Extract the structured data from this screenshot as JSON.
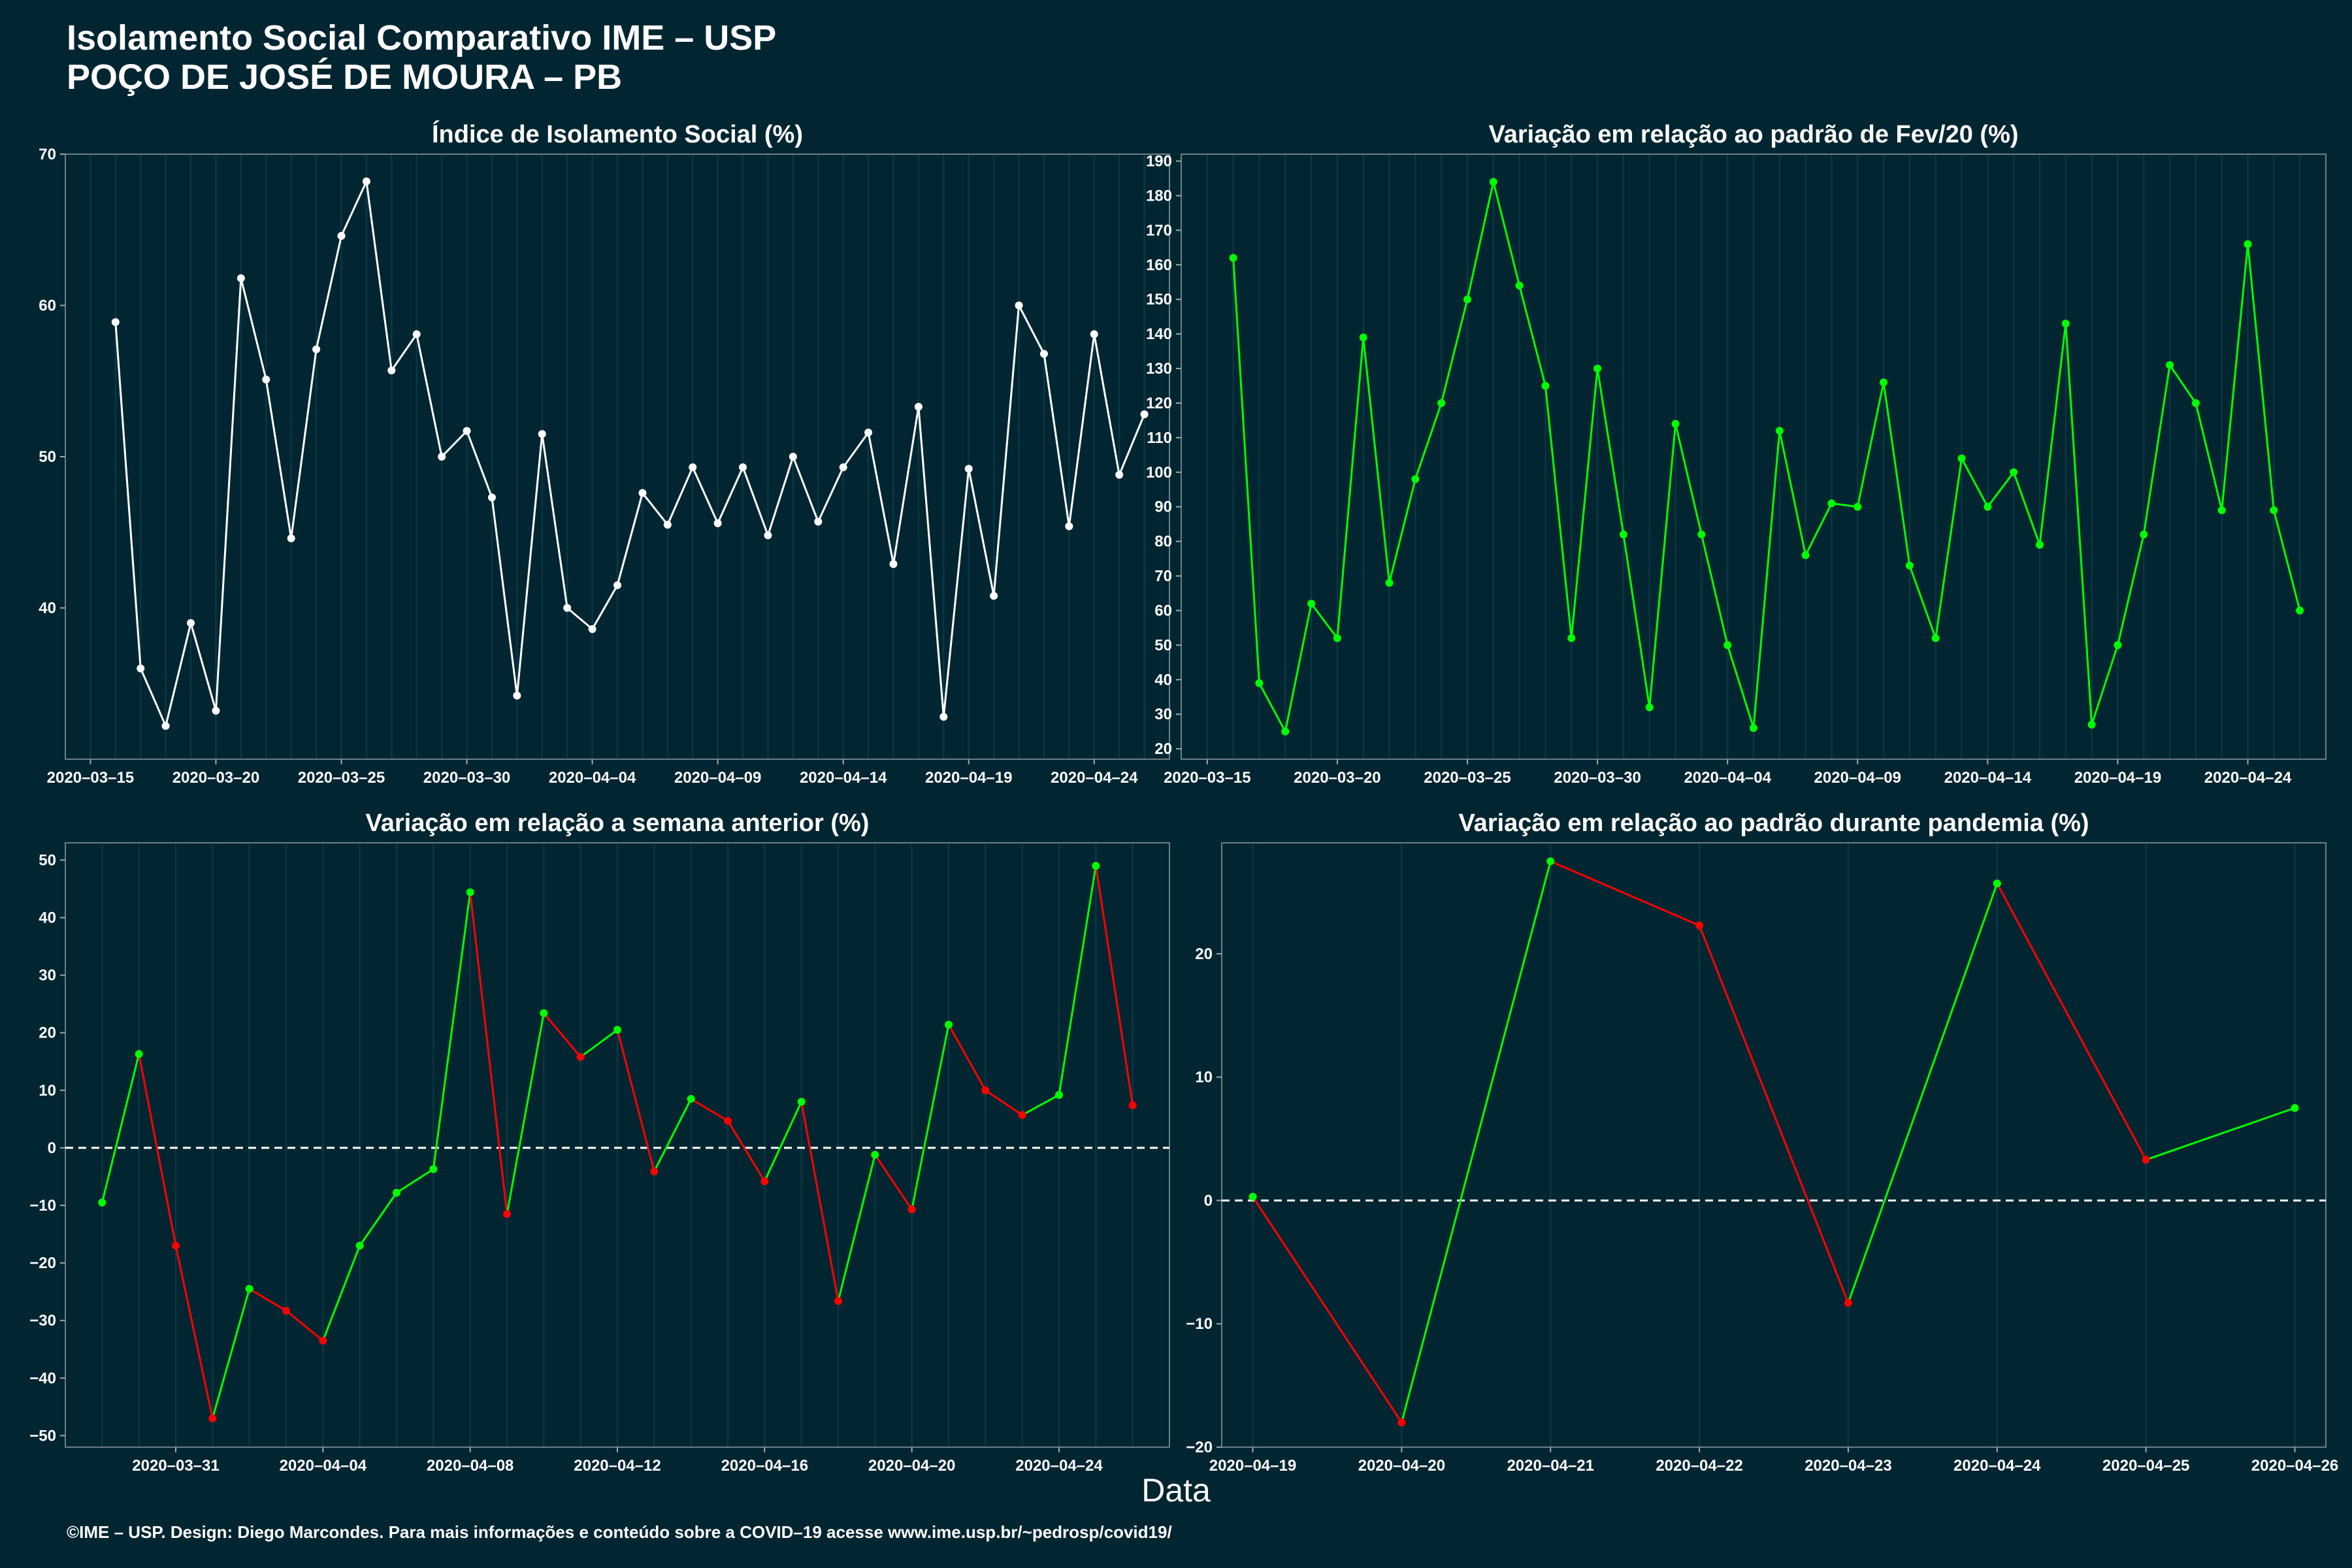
{
  "header": {
    "title": "Isolamento Social Comparativo IME – USP",
    "subtitle": "POÇO DE JOSÉ DE MOURA – PB"
  },
  "footer": "©IME – USP. Design: Diego Marcondes. Para mais informações e conteúdo sobre a COVID–19 acesse www.ime.usp.br/~pedrosp/covid19/",
  "shared_xlabel": "Data",
  "colors": {
    "background": "#022631",
    "panel_background": "#022631",
    "gridline": "#0c3a46",
    "white_series": "#ffffff",
    "positive": "#00ff00",
    "negative": "#ff0000",
    "zero_line": "#ffffff"
  },
  "chart_data": [
    {
      "type": "line",
      "title": "Índice de Isolamento Social (%)",
      "xlabel": "",
      "ylabel": "",
      "x_type": "date",
      "x": [
        "2020-03-16",
        "2020-03-17",
        "2020-03-18",
        "2020-03-19",
        "2020-03-20",
        "2020-03-21",
        "2020-03-22",
        "2020-03-23",
        "2020-03-24",
        "2020-03-25",
        "2020-03-26",
        "2020-03-27",
        "2020-03-28",
        "2020-03-29",
        "2020-03-30",
        "2020-03-31",
        "2020-04-01",
        "2020-04-02",
        "2020-04-03",
        "2020-04-04",
        "2020-04-05",
        "2020-04-06",
        "2020-04-07",
        "2020-04-08",
        "2020-04-09",
        "2020-04-10",
        "2020-04-11",
        "2020-04-12",
        "2020-04-13",
        "2020-04-14",
        "2020-04-15",
        "2020-04-16",
        "2020-04-17",
        "2020-04-18",
        "2020-04-19",
        "2020-04-20",
        "2020-04-21",
        "2020-04-22",
        "2020-04-23",
        "2020-04-24",
        "2020-04-25",
        "2020-04-26"
      ],
      "values": [
        58.9,
        36.0,
        32.2,
        39.0,
        33.2,
        61.8,
        55.1,
        44.6,
        57.1,
        64.6,
        68.2,
        55.7,
        58.1,
        50.0,
        51.7,
        47.3,
        34.2,
        51.5,
        40.0,
        38.6,
        41.5,
        47.6,
        45.5,
        49.3,
        45.6,
        49.3,
        44.8,
        50.0,
        45.7,
        49.3,
        51.6,
        42.9,
        53.3,
        32.8,
        49.2,
        40.8,
        60.0,
        56.8,
        45.4,
        58.1,
        48.8,
        52.8
      ],
      "color": "#ffffff",
      "xticks": [
        "2020-03-15",
        "2020-03-20",
        "2020-03-25",
        "2020-03-30",
        "2020-04-04",
        "2020-04-09",
        "2020-04-14",
        "2020-04-19",
        "2020-04-24"
      ],
      "xlim": [
        "2020-03-14",
        "2020-04-27"
      ],
      "yticks": [
        40,
        50,
        60,
        70
      ],
      "ylim": [
        30,
        70
      ],
      "grid": true
    },
    {
      "type": "line",
      "title": "Variação em relação ao padrão de Fev/20 (%)",
      "xlabel": "",
      "ylabel": "",
      "x_type": "date",
      "x": [
        "2020-03-16",
        "2020-03-17",
        "2020-03-18",
        "2020-03-19",
        "2020-03-20",
        "2020-03-21",
        "2020-03-22",
        "2020-03-23",
        "2020-03-24",
        "2020-03-25",
        "2020-03-26",
        "2020-03-27",
        "2020-03-28",
        "2020-03-29",
        "2020-03-30",
        "2020-03-31",
        "2020-04-01",
        "2020-04-02",
        "2020-04-03",
        "2020-04-04",
        "2020-04-05",
        "2020-04-06",
        "2020-04-07",
        "2020-04-08",
        "2020-04-09",
        "2020-04-10",
        "2020-04-11",
        "2020-04-12",
        "2020-04-13",
        "2020-04-14",
        "2020-04-15",
        "2020-04-16",
        "2020-04-17",
        "2020-04-18",
        "2020-04-19",
        "2020-04-20",
        "2020-04-21",
        "2020-04-22",
        "2020-04-23",
        "2020-04-24",
        "2020-04-25",
        "2020-04-26"
      ],
      "values": [
        162,
        39,
        25,
        62,
        52,
        139,
        68,
        98,
        120,
        150,
        184,
        154,
        125,
        52,
        130,
        82,
        32,
        114,
        82,
        50,
        26,
        112,
        76,
        91,
        90,
        126,
        73,
        52,
        104,
        90,
        100,
        79,
        143,
        27,
        50,
        82,
        131,
        120,
        89,
        166,
        89,
        60
      ],
      "color": "#00ff00",
      "xticks": [
        "2020-03-15",
        "2020-03-20",
        "2020-03-25",
        "2020-03-30",
        "2020-04-04",
        "2020-04-09",
        "2020-04-14",
        "2020-04-19",
        "2020-04-24"
      ],
      "xlim": [
        "2020-03-14",
        "2020-04-27"
      ],
      "yticks": [
        20,
        30,
        40,
        50,
        60,
        70,
        80,
        90,
        100,
        110,
        120,
        130,
        140,
        150,
        160,
        170,
        180,
        190
      ],
      "ylim": [
        17,
        192
      ],
      "grid": true
    },
    {
      "type": "line",
      "title": "Variação em relação a semana anterior (%)",
      "xlabel": "",
      "ylabel": "",
      "x_type": "date",
      "x": [
        "2020-03-29",
        "2020-03-30",
        "2020-03-31",
        "2020-04-01",
        "2020-04-02",
        "2020-04-03",
        "2020-04-04",
        "2020-04-05",
        "2020-04-06",
        "2020-04-07",
        "2020-04-08",
        "2020-04-09",
        "2020-04-10",
        "2020-04-11",
        "2020-04-12",
        "2020-04-13",
        "2020-04-14",
        "2020-04-15",
        "2020-04-16",
        "2020-04-17",
        "2020-04-18",
        "2020-04-19",
        "2020-04-20",
        "2020-04-21",
        "2020-04-22",
        "2020-04-23",
        "2020-04-24",
        "2020-04-25",
        "2020-04-26"
      ],
      "values": [
        -9.5,
        16.3,
        -17.0,
        -47.0,
        -24.5,
        -28.3,
        -33.5,
        -17.0,
        -7.8,
        -3.7,
        44.4,
        -11.5,
        23.4,
        15.8,
        20.5,
        -4.1,
        8.5,
        4.7,
        -5.8,
        8.0,
        -26.6,
        -1.2,
        -10.7,
        21.4,
        10.0,
        5.7,
        9.2,
        49.0,
        7.4
      ],
      "color_rule": "segment green when rising / red when falling",
      "xticks": [
        "2020-03-31",
        "2020-04-04",
        "2020-04-08",
        "2020-04-12",
        "2020-04-16",
        "2020-04-20",
        "2020-04-24"
      ],
      "xlim": [
        "2020-03-28",
        "2020-04-27"
      ],
      "yticks": [
        -50,
        -40,
        -30,
        -20,
        -10,
        0,
        10,
        20,
        30,
        40,
        50
      ],
      "ylim": [
        -52,
        53
      ],
      "zero_line": true,
      "grid": true
    },
    {
      "type": "line",
      "title": "Variação em relação ao padrão durante pandemia (%)",
      "xlabel": "",
      "ylabel": "",
      "x_type": "date",
      "x": [
        "2020-04-19",
        "2020-04-20",
        "2020-04-21",
        "2020-04-22",
        "2020-04-23",
        "2020-04-24",
        "2020-04-25",
        "2020-04-26"
      ],
      "values": [
        0.3,
        -18.0,
        27.5,
        22.3,
        -8.3,
        25.7,
        3.3,
        7.5
      ],
      "color_rule": "segment green when rising / red when falling",
      "xticks": [
        "2020-04-19",
        "2020-04-20",
        "2020-04-21",
        "2020-04-22",
        "2020-04-23",
        "2020-04-24",
        "2020-04-25",
        "2020-04-26"
      ],
      "xlim": [
        "2020-04-18 19:00",
        "2020-04-26 05:00"
      ],
      "yticks": [
        -20,
        -10,
        0,
        10,
        20
      ],
      "ylim": [
        -20,
        29
      ],
      "zero_line": true,
      "grid": true
    }
  ]
}
